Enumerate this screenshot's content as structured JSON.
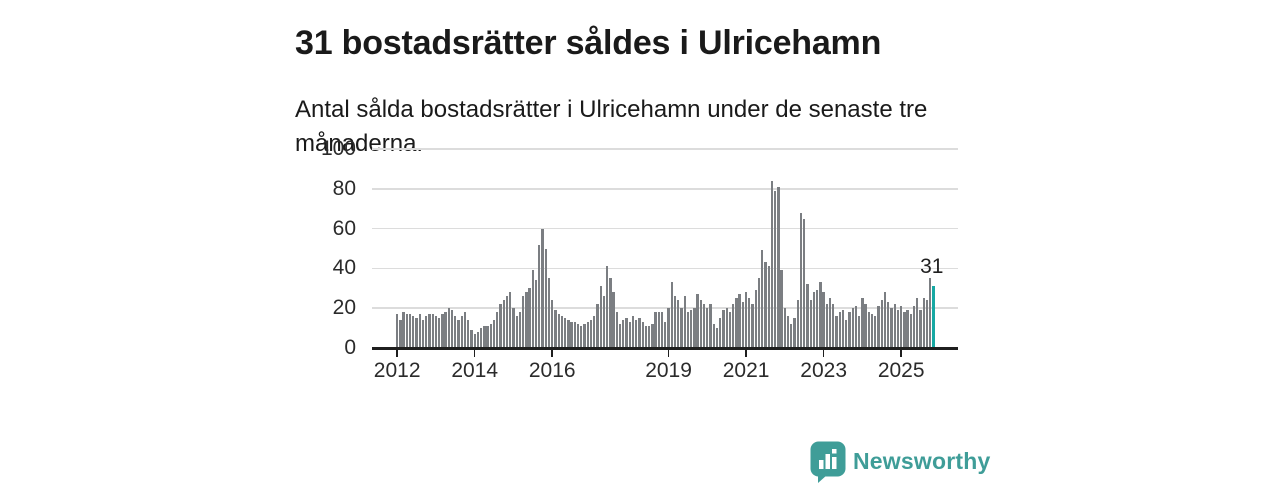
{
  "header": {
    "title": "31 bostadsrätter såldes i Ulricehamn",
    "subtitle": "Antal sålda bostadsrätter i Ulricehamn under de senaste tre månaderna."
  },
  "chart_data": {
    "type": "bar",
    "title": "31 bostadsrätter såldes i Ulricehamn",
    "ylabel": "",
    "xlabel": "",
    "frequency": "monthly",
    "start": "2012-01",
    "end": "2025-11",
    "ylim": [
      0,
      100
    ],
    "y_ticks": [
      0,
      20,
      40,
      60,
      80,
      100
    ],
    "x_tick_years": [
      2012,
      2014,
      2016,
      2019,
      2021,
      2023,
      2025
    ],
    "grid": true,
    "bar_color": "#7b7e82",
    "values": [
      17,
      14,
      18,
      17,
      17,
      16,
      15,
      17,
      14,
      16,
      17,
      17,
      16,
      15,
      17,
      18,
      20,
      19,
      16,
      14,
      16,
      18,
      14,
      9,
      7,
      8,
      10,
      11,
      11,
      12,
      14,
      18,
      22,
      24,
      26,
      28,
      20,
      16,
      18,
      26,
      28,
      30,
      39,
      34,
      52,
      60,
      50,
      35,
      24,
      19,
      17,
      16,
      15,
      14,
      13,
      13,
      12,
      11,
      12,
      13,
      14,
      16,
      22,
      31,
      26,
      41,
      35,
      28,
      18,
      12,
      14,
      15,
      13,
      16,
      14,
      15,
      13,
      11,
      11,
      12,
      18,
      18,
      18,
      13,
      20,
      33,
      26,
      24,
      20,
      26,
      18,
      19,
      20,
      27,
      24,
      22,
      20,
      22,
      12,
      10,
      15,
      19,
      20,
      18,
      22,
      25,
      27,
      23,
      28,
      25,
      22,
      29,
      35,
      49,
      43,
      41,
      84,
      79,
      81,
      39,
      20,
      16,
      12,
      15,
      24,
      68,
      65,
      32,
      24,
      28,
      29,
      33,
      28,
      22,
      25,
      22,
      16,
      18,
      19,
      14,
      18,
      20,
      21,
      16,
      25,
      22,
      18,
      17,
      16,
      21,
      24,
      28,
      23,
      20,
      22,
      19,
      21,
      18,
      19,
      17,
      21,
      25,
      19,
      25,
      24,
      35,
      31
    ],
    "highlight": {
      "index": 166,
      "value": 31,
      "label": "31",
      "color": "#16a8a3"
    }
  },
  "footer": {
    "brand": "Newsworthy"
  },
  "colors": {
    "bar_gray": "#7b7e82",
    "bar_teal": "#16a8a3",
    "logo_teal": "#3f9d98",
    "gridline": "#dcdcdc",
    "axis": "#1f1f1f"
  }
}
